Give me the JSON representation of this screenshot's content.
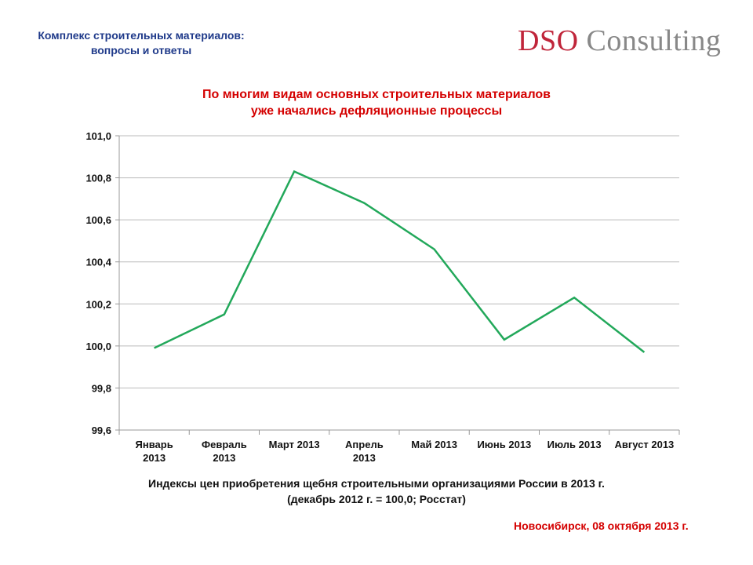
{
  "header": {
    "line1": "Комплекс строительных материалов:",
    "line2": "вопросы и ответы"
  },
  "logo": {
    "part1": "DSO",
    "part2": " Consulting"
  },
  "slide_title": {
    "line1": "По многим видам основных строительных материалов",
    "line2": "уже начались дефляционные процессы"
  },
  "caption": {
    "line1": "Индексы цен приобретения щебня строительными организациями России в 2013 г.",
    "line2": "(декабрь 2012 г. = 100,0; Росстат)"
  },
  "footer": "Новосибирск, 08 октября 2013 г.",
  "chart_data": {
    "type": "line",
    "categories": [
      [
        "Январь",
        "2013"
      ],
      [
        "Февраль",
        "2013"
      ],
      [
        "Март 2013"
      ],
      [
        "Апрель",
        "2013"
      ],
      [
        "Май 2013"
      ],
      [
        "Июнь 2013"
      ],
      [
        "Июль 2013"
      ],
      [
        "Август 2013"
      ]
    ],
    "values": [
      99.99,
      100.15,
      100.83,
      100.68,
      100.46,
      100.03,
      100.23,
      99.97
    ],
    "ylim": [
      99.6,
      101.0
    ],
    "yticks": [
      "99,6",
      "99,8",
      "100,0",
      "100,2",
      "100,4",
      "100,6",
      "100,8",
      "101,0"
    ],
    "grid": true,
    "line_color": "#22a85a"
  }
}
